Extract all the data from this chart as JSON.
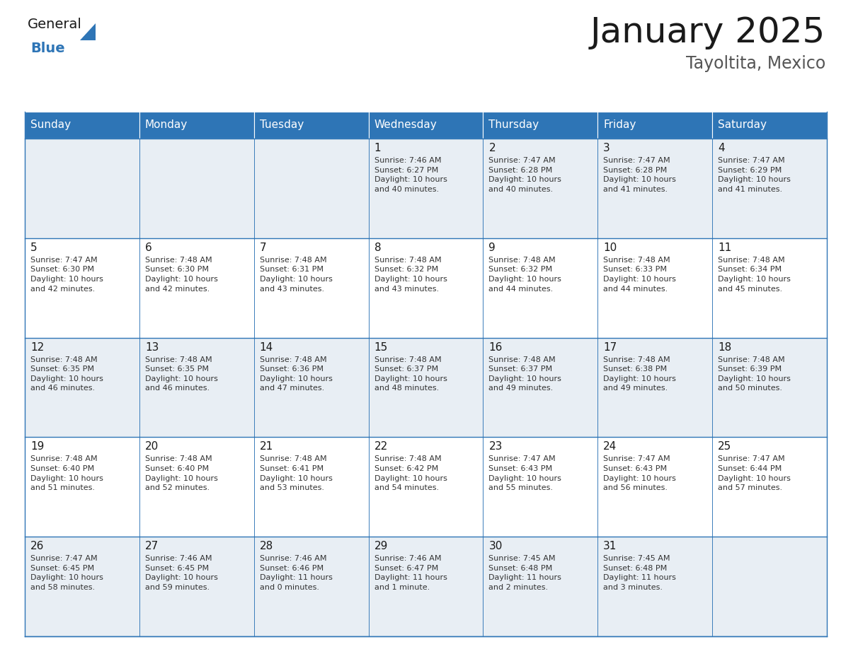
{
  "title": "January 2025",
  "subtitle": "Tayoltita, Mexico",
  "days_of_week": [
    "Sunday",
    "Monday",
    "Tuesday",
    "Wednesday",
    "Thursday",
    "Friday",
    "Saturday"
  ],
  "header_bg": "#2e75b6",
  "header_text_color": "#ffffff",
  "cell_bg_light": "#e8eef4",
  "cell_bg_white": "#ffffff",
  "grid_line_color": "#2e75b6",
  "day_num_color": "#1a1a1a",
  "cell_text_color": "#333333",
  "calendar": [
    [
      {
        "day": "",
        "info": ""
      },
      {
        "day": "",
        "info": ""
      },
      {
        "day": "",
        "info": ""
      },
      {
        "day": "1",
        "info": "Sunrise: 7:46 AM\nSunset: 6:27 PM\nDaylight: 10 hours\nand 40 minutes."
      },
      {
        "day": "2",
        "info": "Sunrise: 7:47 AM\nSunset: 6:28 PM\nDaylight: 10 hours\nand 40 minutes."
      },
      {
        "day": "3",
        "info": "Sunrise: 7:47 AM\nSunset: 6:28 PM\nDaylight: 10 hours\nand 41 minutes."
      },
      {
        "day": "4",
        "info": "Sunrise: 7:47 AM\nSunset: 6:29 PM\nDaylight: 10 hours\nand 41 minutes."
      }
    ],
    [
      {
        "day": "5",
        "info": "Sunrise: 7:47 AM\nSunset: 6:30 PM\nDaylight: 10 hours\nand 42 minutes."
      },
      {
        "day": "6",
        "info": "Sunrise: 7:48 AM\nSunset: 6:30 PM\nDaylight: 10 hours\nand 42 minutes."
      },
      {
        "day": "7",
        "info": "Sunrise: 7:48 AM\nSunset: 6:31 PM\nDaylight: 10 hours\nand 43 minutes."
      },
      {
        "day": "8",
        "info": "Sunrise: 7:48 AM\nSunset: 6:32 PM\nDaylight: 10 hours\nand 43 minutes."
      },
      {
        "day": "9",
        "info": "Sunrise: 7:48 AM\nSunset: 6:32 PM\nDaylight: 10 hours\nand 44 minutes."
      },
      {
        "day": "10",
        "info": "Sunrise: 7:48 AM\nSunset: 6:33 PM\nDaylight: 10 hours\nand 44 minutes."
      },
      {
        "day": "11",
        "info": "Sunrise: 7:48 AM\nSunset: 6:34 PM\nDaylight: 10 hours\nand 45 minutes."
      }
    ],
    [
      {
        "day": "12",
        "info": "Sunrise: 7:48 AM\nSunset: 6:35 PM\nDaylight: 10 hours\nand 46 minutes."
      },
      {
        "day": "13",
        "info": "Sunrise: 7:48 AM\nSunset: 6:35 PM\nDaylight: 10 hours\nand 46 minutes."
      },
      {
        "day": "14",
        "info": "Sunrise: 7:48 AM\nSunset: 6:36 PM\nDaylight: 10 hours\nand 47 minutes."
      },
      {
        "day": "15",
        "info": "Sunrise: 7:48 AM\nSunset: 6:37 PM\nDaylight: 10 hours\nand 48 minutes."
      },
      {
        "day": "16",
        "info": "Sunrise: 7:48 AM\nSunset: 6:37 PM\nDaylight: 10 hours\nand 49 minutes."
      },
      {
        "day": "17",
        "info": "Sunrise: 7:48 AM\nSunset: 6:38 PM\nDaylight: 10 hours\nand 49 minutes."
      },
      {
        "day": "18",
        "info": "Sunrise: 7:48 AM\nSunset: 6:39 PM\nDaylight: 10 hours\nand 50 minutes."
      }
    ],
    [
      {
        "day": "19",
        "info": "Sunrise: 7:48 AM\nSunset: 6:40 PM\nDaylight: 10 hours\nand 51 minutes."
      },
      {
        "day": "20",
        "info": "Sunrise: 7:48 AM\nSunset: 6:40 PM\nDaylight: 10 hours\nand 52 minutes."
      },
      {
        "day": "21",
        "info": "Sunrise: 7:48 AM\nSunset: 6:41 PM\nDaylight: 10 hours\nand 53 minutes."
      },
      {
        "day": "22",
        "info": "Sunrise: 7:48 AM\nSunset: 6:42 PM\nDaylight: 10 hours\nand 54 minutes."
      },
      {
        "day": "23",
        "info": "Sunrise: 7:47 AM\nSunset: 6:43 PM\nDaylight: 10 hours\nand 55 minutes."
      },
      {
        "day": "24",
        "info": "Sunrise: 7:47 AM\nSunset: 6:43 PM\nDaylight: 10 hours\nand 56 minutes."
      },
      {
        "day": "25",
        "info": "Sunrise: 7:47 AM\nSunset: 6:44 PM\nDaylight: 10 hours\nand 57 minutes."
      }
    ],
    [
      {
        "day": "26",
        "info": "Sunrise: 7:47 AM\nSunset: 6:45 PM\nDaylight: 10 hours\nand 58 minutes."
      },
      {
        "day": "27",
        "info": "Sunrise: 7:46 AM\nSunset: 6:45 PM\nDaylight: 10 hours\nand 59 minutes."
      },
      {
        "day": "28",
        "info": "Sunrise: 7:46 AM\nSunset: 6:46 PM\nDaylight: 11 hours\nand 0 minutes."
      },
      {
        "day": "29",
        "info": "Sunrise: 7:46 AM\nSunset: 6:47 PM\nDaylight: 11 hours\nand 1 minute."
      },
      {
        "day": "30",
        "info": "Sunrise: 7:45 AM\nSunset: 6:48 PM\nDaylight: 11 hours\nand 2 minutes."
      },
      {
        "day": "31",
        "info": "Sunrise: 7:45 AM\nSunset: 6:48 PM\nDaylight: 11 hours\nand 3 minutes."
      },
      {
        "day": "",
        "info": ""
      }
    ]
  ],
  "logo_text1": "General",
  "logo_text2": "Blue",
  "logo_text1_color": "#1a1a1a",
  "logo_text2_color": "#2e75b6",
  "logo_triangle_color": "#2e75b6",
  "fig_width": 11.88,
  "fig_height": 9.18,
  "dpi": 100
}
